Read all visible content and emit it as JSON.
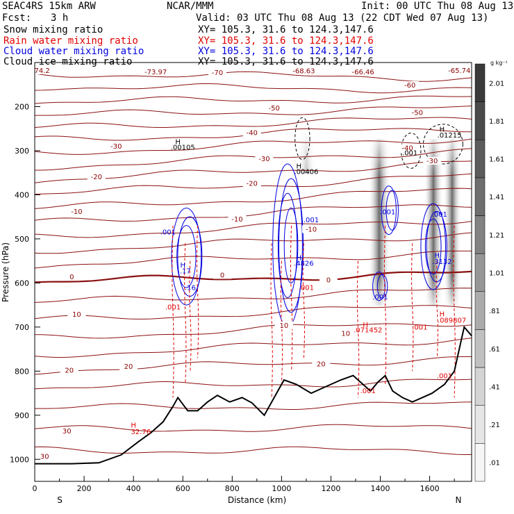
{
  "header": {
    "model": "SEAC4RS 15km ARW",
    "org": "NCAR/MMM",
    "init": "Init: 00 UTC Thu 08 Aug 13",
    "fcst_label": "Fcst:",
    "fcst_value": "3 h",
    "valid": "Valid: 03 UTC Thu 08 Aug 13 (22 CDT Wed 07 Aug 13)",
    "fields": [
      {
        "name": "Snow mixing ratio",
        "xy": "XY= 105.3, 31.6 to 124.3,147.6",
        "color": "#000000"
      },
      {
        "name": "Rain water mixing ratio",
        "xy": "XY= 105.3, 31.6 to 124.3,147.6",
        "color": "#e00000"
      },
      {
        "name": "Cloud water mixing ratio",
        "xy": "XY= 105.3, 31.6 to 124.3,147.6",
        "color": "#0000e0"
      },
      {
        "name": "Cloud ice mixing ratio",
        "xy": "XY= 105.3, 31.6 to 124.3,147.6",
        "color": "#000000"
      }
    ]
  },
  "chart_data": {
    "type": "contour_cross_section",
    "xlabel": "Distance (km)",
    "ylabel": "Pressure (hPa)",
    "x_ticks": [
      0,
      200,
      400,
      600,
      800,
      1000,
      1200,
      1400,
      1600
    ],
    "y_ticks": [
      200,
      300,
      400,
      500,
      600,
      700,
      800,
      900,
      1000
    ],
    "xlim": [
      0,
      1770
    ],
    "ylim": [
      1050,
      100
    ],
    "x_end_labels": {
      "left": "S",
      "right": "N"
    },
    "colorbar": {
      "unit": "g kg⁻¹",
      "labels": [
        "2.01",
        "1.81",
        "1.61",
        "1.41",
        "1.21",
        "1.01",
        ".81",
        ".61",
        ".41",
        ".21",
        ".01"
      ],
      "colors": [
        "#3a3a3a",
        "#4a4a4a",
        "#5c5c5c",
        "#6e6e6e",
        "#828282",
        "#969696",
        "#ababab",
        "#c0c0c0",
        "#d4d4d4",
        "#e6e6e6",
        "#f6f6f6"
      ]
    },
    "temperature_labels": [
      {
        "text": "74.2",
        "x": 30,
        "p": 122,
        "color": "#8b0000"
      },
      {
        "text": "-73.97",
        "x": 490,
        "p": 125,
        "color": "#8b0000"
      },
      {
        "text": "-70",
        "x": 740,
        "p": 127,
        "color": "#8b0000"
      },
      {
        "text": "-68.63",
        "x": 1090,
        "p": 123,
        "color": "#8b0000"
      },
      {
        "text": "-66.46",
        "x": 1330,
        "p": 125,
        "color": "#8b0000"
      },
      {
        "text": "-65.74",
        "x": 1720,
        "p": 122,
        "color": "#8b0000"
      },
      {
        "text": "-60",
        "x": 1520,
        "p": 155,
        "color": "#8b0000"
      },
      {
        "text": "-50",
        "x": 970,
        "p": 207,
        "color": "#8b0000"
      },
      {
        "text": "-50",
        "x": 1550,
        "p": 217,
        "color": "#8b0000"
      },
      {
        "text": "-40",
        "x": 880,
        "p": 263,
        "color": "#8b0000"
      },
      {
        "text": "-40",
        "x": 1510,
        "p": 298,
        "color": "#8b0000"
      },
      {
        "text": "-30",
        "x": 330,
        "p": 294,
        "color": "#8b0000"
      },
      {
        "text": "-30",
        "x": 930,
        "p": 322,
        "color": "#8b0000"
      },
      {
        "text": "-30",
        "x": 1610,
        "p": 327,
        "color": "#8b0000"
      },
      {
        "text": "-20",
        "x": 250,
        "p": 363,
        "color": "#8b0000"
      },
      {
        "text": "-20",
        "x": 880,
        "p": 378,
        "color": "#8b0000"
      },
      {
        "text": "-10",
        "x": 170,
        "p": 442,
        "color": "#8b0000"
      },
      {
        "text": "-10",
        "x": 820,
        "p": 459,
        "color": "#8b0000"
      },
      {
        "text": "-10",
        "x": 1120,
        "p": 482,
        "color": "#8b0000"
      },
      {
        "text": "0",
        "x": 150,
        "p": 590,
        "color": "#8b0000"
      },
      {
        "text": "0",
        "x": 760,
        "p": 586,
        "color": "#8b0000"
      },
      {
        "text": "0",
        "x": 1190,
        "p": 597,
        "color": "#8b0000"
      },
      {
        "text": "10",
        "x": 170,
        "p": 675,
        "color": "#8b0000"
      },
      {
        "text": "10",
        "x": 1010,
        "p": 700,
        "color": "#8b0000"
      },
      {
        "text": "10",
        "x": 1260,
        "p": 718,
        "color": "#8b0000"
      },
      {
        "text": "20",
        "x": 380,
        "p": 793,
        "color": "#8b0000"
      },
      {
        "text": "20",
        "x": 140,
        "p": 802,
        "color": "#8b0000"
      },
      {
        "text": "20",
        "x": 1160,
        "p": 788,
        "color": "#8b0000"
      },
      {
        "text": "30",
        "x": 130,
        "p": 940,
        "color": "#8b0000"
      },
      {
        "text": "30",
        "x": 40,
        "p": 997,
        "color": "#8b0000"
      }
    ],
    "annotations": [
      {
        "text": "H",
        "x": 580,
        "p": 285,
        "color": "#000000"
      },
      {
        "text": ".00105",
        "x": 600,
        "p": 298,
        "color": "#000000"
      },
      {
        "text": "H",
        "x": 1070,
        "p": 340,
        "color": "#000000"
      },
      {
        "text": ".00406",
        "x": 1100,
        "p": 353,
        "color": "#000000"
      },
      {
        "text": "H",
        "x": 1650,
        "p": 257,
        "color": "#000000"
      },
      {
        "text": ".01215",
        "x": 1680,
        "p": 270,
        "color": "#000000"
      },
      {
        "text": ".001",
        "x": 1520,
        "p": 310,
        "color": "#000000"
      },
      {
        "text": ".001",
        "x": 540,
        "p": 490,
        "color": "#0000e0"
      },
      {
        "text": ".001",
        "x": 1120,
        "p": 462,
        "color": "#0000e0"
      },
      {
        "text": ".001",
        "x": 1430,
        "p": 444,
        "color": "#0000e0"
      },
      {
        "text": ".001",
        "x": 1640,
        "p": 450,
        "color": "#0000e0"
      },
      {
        "text": ".001",
        "x": 1400,
        "p": 637,
        "color": "#0000e0"
      },
      {
        "text": "H",
        "x": 1630,
        "p": 543,
        "color": "#0000e0"
      },
      {
        "text": ".3132",
        "x": 1650,
        "p": 557,
        "color": "#0000e0"
      },
      {
        "text": "H",
        "x": 1070,
        "p": 548,
        "color": "#0000e0"
      },
      {
        "text": ".4826",
        "x": 1090,
        "p": 561,
        "color": "#0000e0"
      },
      {
        "text": "H",
        "x": 600,
        "p": 565,
        "color": "#0000e0"
      },
      {
        "text": ".17",
        "x": 610,
        "p": 578,
        "color": "#0000e0"
      },
      {
        "text": ".16",
        "x": 630,
        "p": 616,
        "color": "#0000e0"
      },
      {
        "text": ".001",
        "x": 1100,
        "p": 616,
        "color": "#e00000"
      },
      {
        "text": ".001",
        "x": 560,
        "p": 660,
        "color": "#e00000"
      },
      {
        "text": "H",
        "x": 1340,
        "p": 700,
        "color": "#e00000"
      },
      {
        "text": ".071452",
        "x": 1350,
        "p": 712,
        "color": "#e00000"
      },
      {
        "text": ".001",
        "x": 1560,
        "p": 706,
        "color": "#e00000"
      },
      {
        "text": "H",
        "x": 1650,
        "p": 676,
        "color": "#e00000"
      },
      {
        "text": ".089807",
        "x": 1690,
        "p": 690,
        "color": "#e00000"
      },
      {
        "text": ".001",
        "x": 1350,
        "p": 850,
        "color": "#e00000"
      },
      {
        "text": ".001",
        "x": 1660,
        "p": 816,
        "color": "#e00000"
      },
      {
        "text": "H",
        "x": 400,
        "p": 928,
        "color": "#e00000"
      },
      {
        "text": "32.76",
        "x": 430,
        "p": 943,
        "color": "#e00000"
      }
    ]
  }
}
